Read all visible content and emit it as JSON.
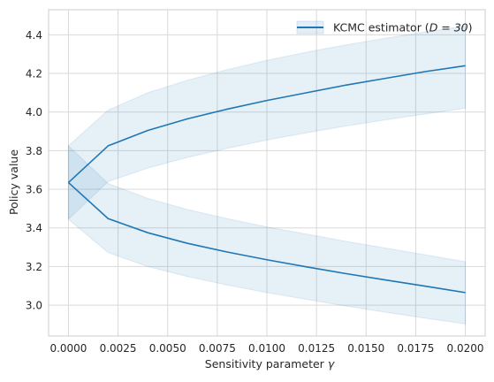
{
  "chart_data": {
    "type": "line",
    "title": "",
    "xlabel": "Sensitivity parameter",
    "xlabel_symbol": "γ",
    "ylabel": "Policy value",
    "xlim": [
      -0.001,
      0.021
    ],
    "ylim": [
      2.84,
      4.53
    ],
    "xticks": [
      0.0,
      0.0025,
      0.005,
      0.0075,
      0.01,
      0.0125,
      0.015,
      0.0175,
      0.02
    ],
    "xtick_labels": [
      "0.0000",
      "0.0025",
      "0.0050",
      "0.0075",
      "0.0100",
      "0.0125",
      "0.0150",
      "0.0175",
      "0.0200"
    ],
    "yticks": [
      3.0,
      3.2,
      3.4,
      3.6,
      3.8,
      4.0,
      4.2,
      4.4
    ],
    "ytick_labels": [
      "3.0",
      "3.2",
      "3.4",
      "3.6",
      "3.8",
      "4.0",
      "4.2",
      "4.4"
    ],
    "grid": true,
    "legend": {
      "position": "top-right",
      "entries": [
        {
          "label_prefix": "KCMC estimator (",
          "label_math": "D = 30",
          "label_suffix": ")"
        }
      ]
    },
    "colors": {
      "line": "#1f77b4",
      "band": "#1f77b4",
      "grid": "#d9d9d9",
      "spine": "#cccccc"
    },
    "x": [
      0.0,
      0.002,
      0.004,
      0.006,
      0.008,
      0.01,
      0.012,
      0.014,
      0.016,
      0.018,
      0.02
    ],
    "series": [
      {
        "name": "upper bound",
        "values": [
          3.635,
          3.825,
          3.905,
          3.965,
          4.015,
          4.06,
          4.1,
          4.14,
          4.175,
          4.21,
          4.24
        ],
        "band_upper": [
          3.825,
          4.01,
          4.1,
          4.165,
          4.22,
          4.268,
          4.31,
          4.348,
          4.383,
          4.415,
          4.445
        ],
        "band_lower": [
          3.445,
          3.64,
          3.71,
          3.765,
          3.812,
          3.855,
          3.893,
          3.928,
          3.96,
          3.99,
          4.02
        ]
      },
      {
        "name": "lower bound",
        "values": [
          3.635,
          3.448,
          3.375,
          3.32,
          3.275,
          3.235,
          3.198,
          3.163,
          3.13,
          3.098,
          3.065
        ],
        "band_upper": [
          3.825,
          3.63,
          3.553,
          3.495,
          3.448,
          3.405,
          3.368,
          3.33,
          3.295,
          3.26,
          3.225
        ],
        "band_lower": [
          3.445,
          3.272,
          3.2,
          3.148,
          3.104,
          3.065,
          3.03,
          2.995,
          2.963,
          2.932,
          2.903
        ]
      }
    ]
  }
}
